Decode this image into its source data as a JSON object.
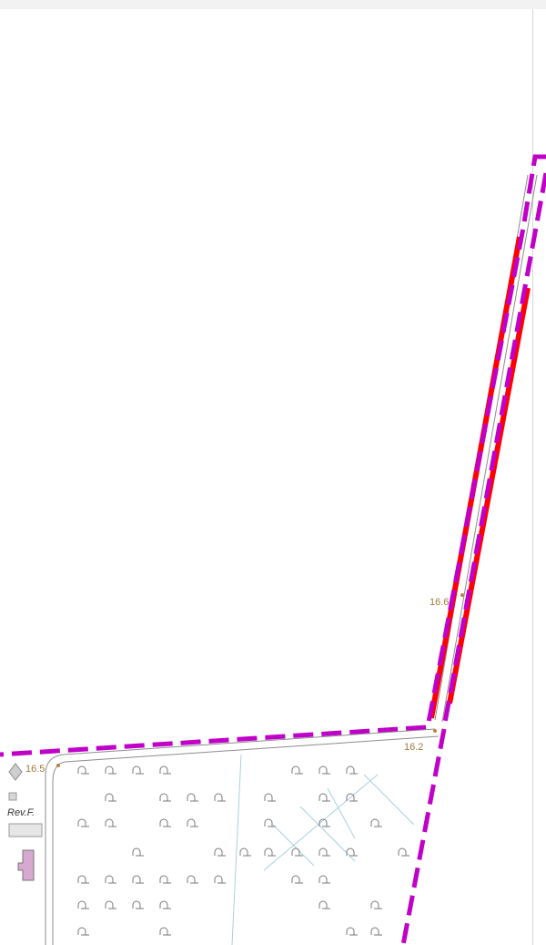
{
  "map": {
    "spot_heights": [
      "16.6",
      "16.2",
      "16.5"
    ],
    "place_label": "Rev.F.",
    "colors": {
      "boundary_purple": "#c000c8",
      "highlight_red": "#ff0000",
      "road_edge": "#8c8c8c",
      "drain_line": "#a8d0dc",
      "spot_height_text": "#a07a3a",
      "building_fill": "#d7a8d0",
      "grave_symbol": "#7a7a7a"
    },
    "icons": {
      "grave_symbol": "cemetery-grave-symbol",
      "spot_dot": "spot-height-dot"
    }
  }
}
